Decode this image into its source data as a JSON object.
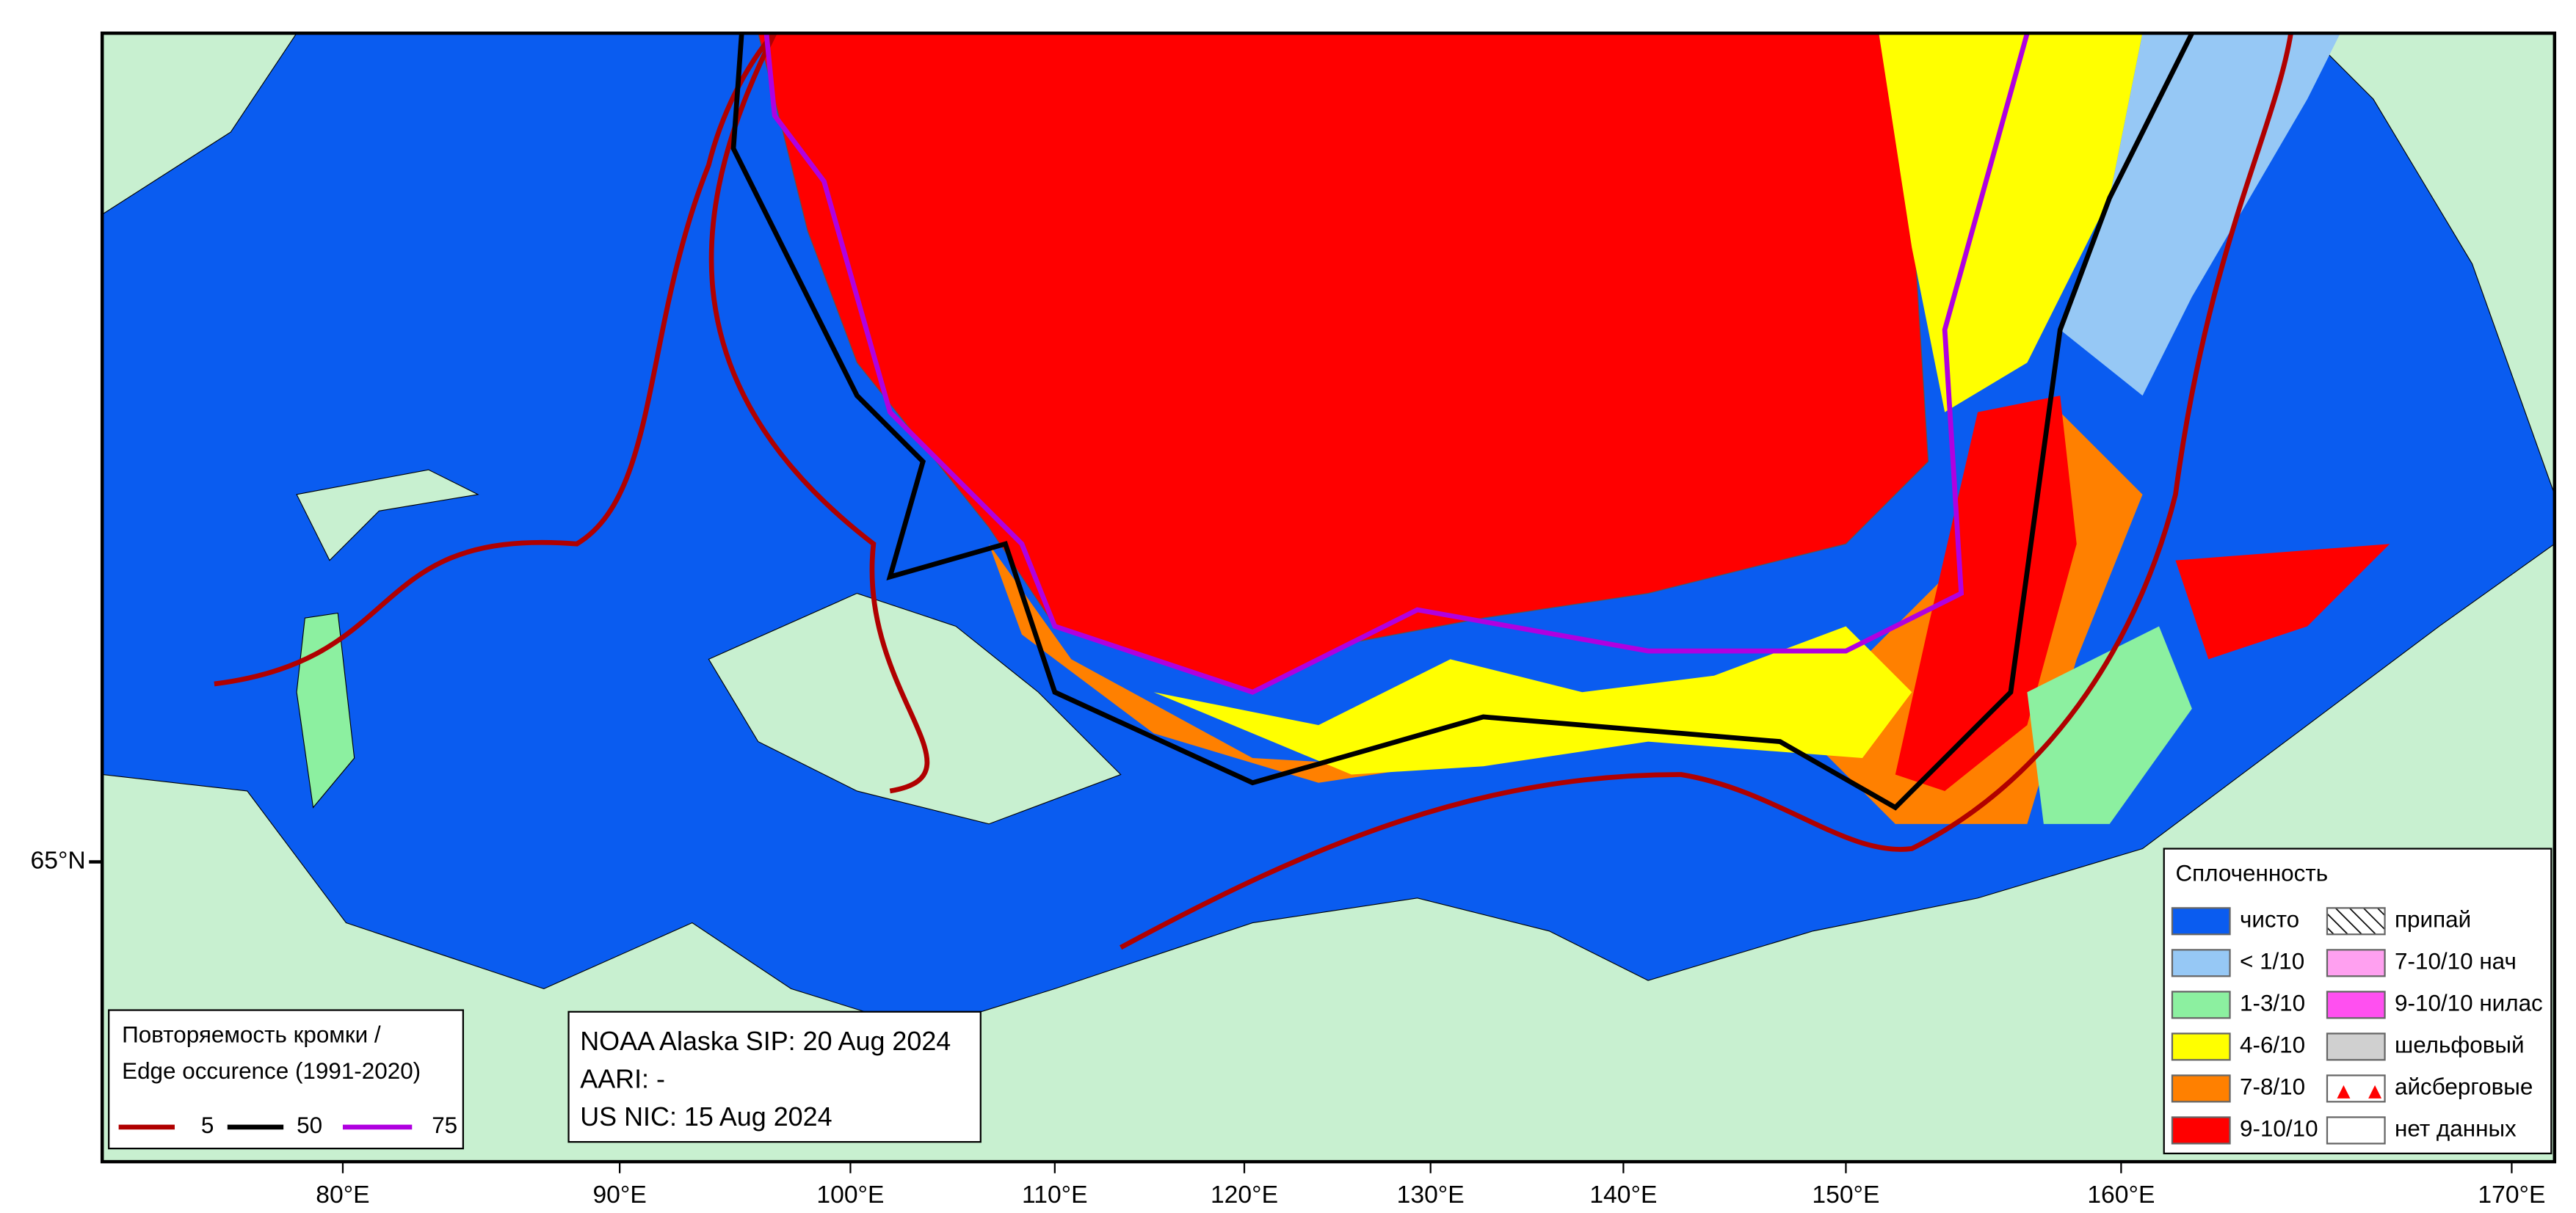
{
  "map": {
    "longitude_labels": [
      "80°E",
      "90°E",
      "100°E",
      "110°E",
      "120°E",
      "130°E",
      "140°E",
      "150°E",
      "160°E",
      "170°E"
    ],
    "latitude_labels": [
      "65°N"
    ],
    "edge_legend": {
      "title_lines": [
        "Повторяемость кромки /",
        "Edge occurence (1991-2020)"
      ],
      "items": [
        {
          "label": "5",
          "color": "#b00000"
        },
        {
          "label": "50",
          "color": "#000000"
        },
        {
          "label": "75",
          "color": "#b000e0"
        }
      ]
    },
    "sources": [
      "NOAA Alaska SIP: 20 Aug 2024",
      "AARI: -",
      "US NIC: 15 Aug 2024"
    ],
    "concentration_legend": {
      "title": "Сплоченность",
      "items": [
        {
          "label": "чисто",
          "color": "#0a5cf0"
        },
        {
          "label": "< 1/10",
          "color": "#96c8f5"
        },
        {
          "label": "1-3/10",
          "color": "#8cf0a0"
        },
        {
          "label": "4-6/10",
          "color": "#ffff00"
        },
        {
          "label": "7-8/10",
          "color": "#ff8000"
        },
        {
          "label": "9-10/10",
          "color": "#ff0000"
        },
        {
          "label": "припай",
          "color": "#ffffff",
          "pattern": "hatch"
        },
        {
          "label": "7-10/10 нач",
          "color": "#ffa0f0"
        },
        {
          "label": "9-10/10 нилас",
          "color": "#ff50f0"
        },
        {
          "label": "шельфовый",
          "color": "#d0d0d0"
        },
        {
          "label": "айсберговые",
          "color": "#ffffff",
          "pattern": "triangles"
        },
        {
          "label": "нет данных",
          "color": "#ffffff"
        }
      ]
    }
  }
}
